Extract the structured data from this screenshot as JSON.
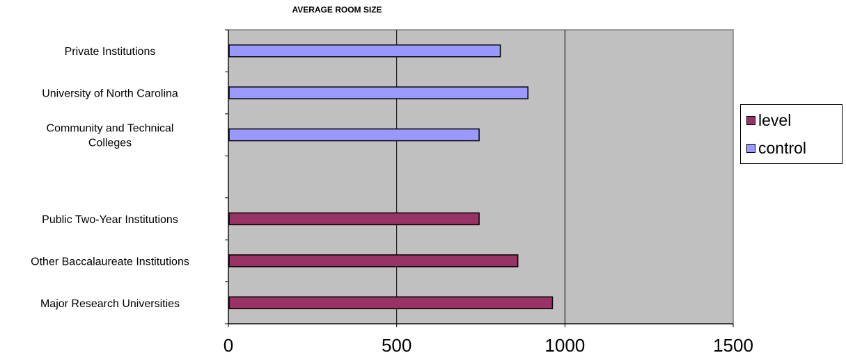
{
  "chart_data": {
    "type": "bar",
    "orientation": "horizontal",
    "title": "AVERAGE ROOM SIZE",
    "xlabel": "",
    "ylabel": "",
    "xlim": [
      0,
      1500
    ],
    "xticks": [
      "0",
      "500",
      "1000",
      "1500"
    ],
    "grid": "vertical lines at major ticks",
    "plot_background": "#c0c0c0",
    "legend_position": "right",
    "categories": [
      "Private Institutions",
      "University of North Carolina",
      "Community and Technical Colleges",
      "",
      "Public Two-Year Institutions",
      "Other Baccalaureate Institutions",
      "Major Research Universities"
    ],
    "category_lines": [
      [
        "Private Institutions"
      ],
      [
        "University of North Carolina"
      ],
      [
        "Community and Technical",
        "Colleges"
      ],
      [],
      [
        "Public Two-Year Institutions"
      ],
      [
        "Other Baccalaureate Institutions"
      ],
      [
        "Major Research Universities"
      ]
    ],
    "series": [
      {
        "name": "level",
        "color": "#993366",
        "values": [
          null,
          null,
          null,
          null,
          745,
          860,
          963
        ]
      },
      {
        "name": "control",
        "color": "#9999ff",
        "values": [
          808,
          890,
          745,
          null,
          null,
          null,
          null
        ]
      }
    ]
  },
  "legend": {
    "items": [
      {
        "label": "level",
        "color": "#993366"
      },
      {
        "label": "control",
        "color": "#9999ff"
      }
    ]
  }
}
